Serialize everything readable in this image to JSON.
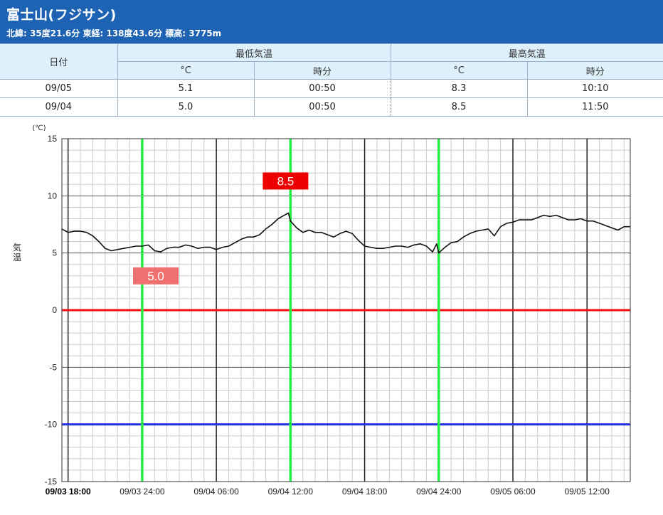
{
  "header": {
    "title": "富士山(フジサン)",
    "subtitle": "北緯: 35度21.6分 東経: 138度43.6分 標高: 3775m"
  },
  "table": {
    "date_header": "日付",
    "min_header": "最低気温",
    "max_header": "最高気温",
    "deg_label": "°C",
    "time_label": "時分",
    "rows": [
      {
        "date": "09/05",
        "min_temp": "5.1",
        "min_time": "00:50",
        "max_temp": "8.3",
        "max_time": "10:10"
      },
      {
        "date": "09/04",
        "min_temp": "5.0",
        "min_time": "00:50",
        "max_temp": "8.5",
        "max_time": "11:50"
      }
    ]
  },
  "chart_data": {
    "type": "line",
    "unit_label": "(℃)",
    "ylabel": "気温",
    "ylim": [
      -15,
      15
    ],
    "y_ticks": [
      15,
      10,
      5,
      0,
      -5,
      -10,
      -15
    ],
    "x_tick_hours": [
      0,
      6,
      12,
      18,
      24,
      30,
      36,
      42
    ],
    "x_tick_labels": [
      "09/03 18:00",
      "09/03 24:00",
      "09/04 06:00",
      "09/04 12:00",
      "09/04 18:00",
      "09/04 24:00",
      "09/05 06:00",
      "09/05 12:00"
    ],
    "x_range_hours": [
      -0.5,
      45.5
    ],
    "reference_lines": [
      {
        "y": 0,
        "color": "#ee1111"
      },
      {
        "y": -10,
        "color": "#2233dd"
      }
    ],
    "marker_lines_hours": [
      6,
      18,
      30
    ],
    "min_label": {
      "text": "5.0",
      "x": 7.1,
      "y": 3.0,
      "color": "#f07070"
    },
    "max_label": {
      "text": "8.5",
      "x": 17.6,
      "y": 11.3,
      "color": "#ee0000"
    },
    "line_color": "#111111",
    "series": [
      {
        "x": [
          -0.5,
          0,
          0.5,
          1,
          1.5,
          2,
          2.5,
          3,
          3.5,
          4,
          4.5,
          5,
          5.5,
          6,
          6.5,
          7,
          7.5,
          8,
          8.5,
          9,
          9.5,
          10,
          10.5,
          11,
          11.5,
          12,
          12.5,
          13,
          13.5,
          14,
          14.5,
          15,
          15.5,
          16,
          16.5,
          17,
          17.5,
          17.83,
          18,
          18.5,
          19,
          19.5,
          20,
          20.5,
          21,
          21.5,
          22,
          22.5,
          23,
          23.5,
          24,
          24.5,
          25,
          25.5,
          26,
          26.5,
          27,
          27.5,
          28,
          28.5,
          29,
          29.5,
          29.83,
          30,
          30.5,
          31,
          31.5,
          32,
          32.5,
          33,
          33.5,
          34,
          34.5,
          35,
          35.5,
          36,
          36.5,
          37,
          37.5,
          38,
          38.5,
          39,
          39.5,
          40,
          40.5,
          41,
          41.5,
          42,
          42.5,
          43,
          43.5,
          44,
          44.5,
          45,
          45.5
        ],
        "values": [
          7.1,
          6.8,
          6.9,
          6.9,
          6.8,
          6.5,
          6.0,
          5.4,
          5.2,
          5.3,
          5.4,
          5.5,
          5.6,
          5.6,
          5.7,
          5.2,
          5.1,
          5.4,
          5.5,
          5.5,
          5.7,
          5.6,
          5.4,
          5.5,
          5.5,
          5.3,
          5.5,
          5.6,
          5.9,
          6.2,
          6.4,
          6.4,
          6.6,
          7.1,
          7.5,
          8.0,
          8.3,
          8.5,
          7.8,
          7.2,
          6.8,
          7.0,
          6.8,
          6.8,
          6.6,
          6.4,
          6.7,
          6.9,
          6.7,
          6.1,
          5.6,
          5.5,
          5.4,
          5.4,
          5.5,
          5.6,
          5.6,
          5.5,
          5.7,
          5.8,
          5.6,
          5.1,
          5.8,
          5.0,
          5.5,
          5.9,
          6.0,
          6.4,
          6.7,
          6.9,
          7.0,
          7.1,
          6.5,
          7.3,
          7.6,
          7.7,
          7.9,
          7.9,
          7.9,
          8.1,
          8.3,
          8.2,
          8.3,
          8.1,
          7.9,
          7.9,
          8.0,
          7.8,
          7.8,
          7.6,
          7.4,
          7.2,
          7.0,
          7.3,
          7.3
        ]
      }
    ]
  }
}
